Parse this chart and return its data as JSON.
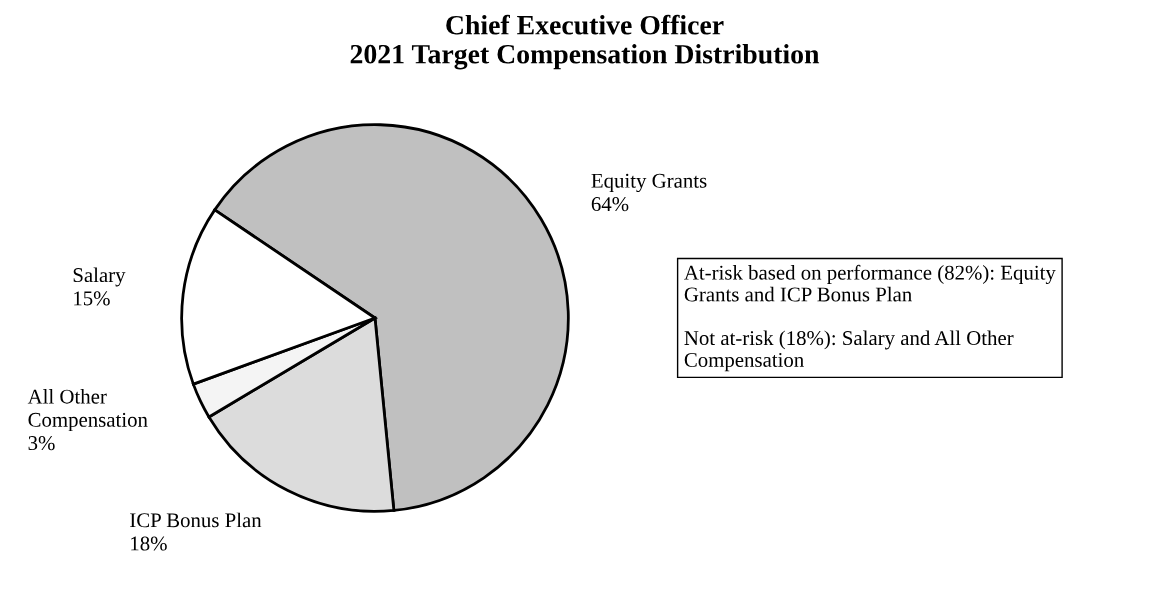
{
  "chart_data": {
    "type": "pie",
    "title": "Chief Executive Officer\n2021 Target Compensation Distribution",
    "categories": [
      "Equity Grants",
      "ICP Bonus Plan",
      "All Other\nCompensation",
      "Salary"
    ],
    "values": [
      64,
      18,
      3,
      15
    ],
    "value_labels": [
      "64%",
      "18%",
      "3%",
      "15%"
    ],
    "colors": [
      "#c0c0c0",
      "#dcdcdc",
      "#f4f4f4",
      "#ffffff"
    ],
    "annotations": [
      "At-risk based on performance (82%): Equity\nGrants and ICP Bonus Plan\n\nNot at-risk (18%): Salary and All Other\nCompensation"
    ]
  }
}
